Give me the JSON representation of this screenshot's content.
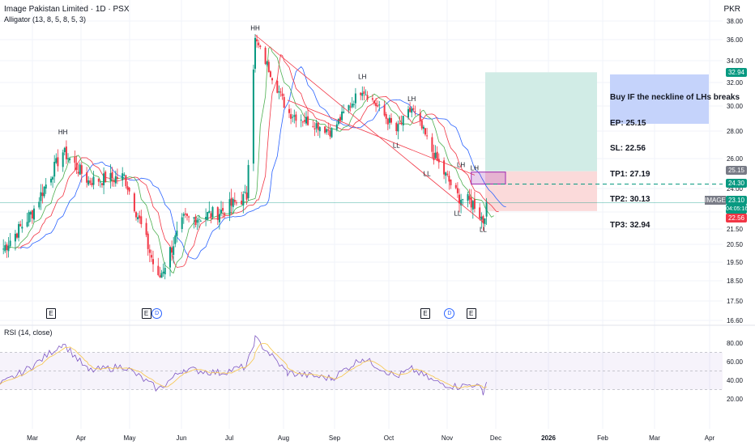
{
  "header": {
    "title": "Image Pakistan Limited · 1D · PSX",
    "indicator": "Alligator (13, 8, 5, 8, 5, 3)",
    "rsi_label": "RSI (14, close)",
    "currency": "PKR"
  },
  "trade_plan": {
    "lines": [
      "Buy IF the neckline of LHs breaks",
      "EP: 25.15",
      "SL: 22.56",
      "TP1: 27.19",
      "TP2: 30.13",
      "TP3: 32.94"
    ]
  },
  "price_labels": {
    "tp3": "32.94",
    "entry": "25.15",
    "neckline": "24.30",
    "symbol": "IMAGE",
    "last": "23.10",
    "countdown": "04:05:16",
    "stop": "22.56"
  },
  "events": [
    {
      "type": "E",
      "date": "2025-03-03"
    },
    {
      "type": "E",
      "date": "2025-04-28"
    },
    {
      "type": "D",
      "date": "2025-05-04"
    },
    {
      "type": "E",
      "date": "2025-10-09"
    },
    {
      "type": "D",
      "date": "2025-10-23"
    },
    {
      "type": "E",
      "date": "2025-11-05"
    }
  ],
  "colors": {
    "up": "#089981",
    "down": "#f23645",
    "jaw": "#2962ff",
    "teeth": "#f23645",
    "lips": "#4caf50",
    "rsi": "#7e57c2",
    "rsi_ma": "#f7c548",
    "target_zone": "#d1ece6",
    "stop_zone": "#fbdada",
    "plan_box": "#c5d3fb",
    "trendline": "#f23645",
    "neckline": "#089981"
  },
  "chart_data": {
    "type": "candlestick",
    "timeframe": "1D",
    "y_axis_ticks": [
      38.0,
      36.0,
      34.0,
      32.0,
      30.0,
      28.0,
      26.0,
      24.0,
      22.5,
      21.5,
      20.5,
      19.5,
      18.5,
      17.5,
      16.6
    ],
    "x_axis_ticks": [
      "Mar",
      "Apr",
      "May",
      "Jun",
      "Jul",
      "Aug",
      "Sep",
      "Oct",
      "Nov",
      "Dec",
      "2026",
      "Feb",
      "Mar",
      "Apr"
    ],
    "pivots": [
      {
        "label": "HH",
        "date": "2025-03-10",
        "price": 27.4
      },
      {
        "label": "HH",
        "date": "2025-07-01",
        "price": 36.5
      },
      {
        "label": "LH",
        "date": "2025-09-02",
        "price": 31.9
      },
      {
        "label": "LH",
        "date": "2025-10-01",
        "price": 30.0
      },
      {
        "label": "LL",
        "date": "2025-09-22",
        "price": 27.5
      },
      {
        "label": "LL",
        "date": "2025-10-10",
        "price": 25.5
      },
      {
        "label": "LH",
        "date": "2025-10-30",
        "price": 25.1
      },
      {
        "label": "LL",
        "date": "2025-10-28",
        "price": 22.9
      },
      {
        "label": "LH",
        "date": "2025-11-07",
        "price": 24.9
      },
      {
        "label": "LL",
        "date": "2025-11-12",
        "price": 21.9
      }
    ],
    "key_points": [
      {
        "date": "2025-02-01",
        "close": 20.0
      },
      {
        "date": "2025-02-20",
        "close": 22.5
      },
      {
        "date": "2025-03-10",
        "close": 26.5
      },
      {
        "date": "2025-03-25",
        "close": 24.5
      },
      {
        "date": "2025-04-15",
        "close": 24.8
      },
      {
        "date": "2025-05-05",
        "close": 18.5
      },
      {
        "date": "2025-05-20",
        "close": 22.0
      },
      {
        "date": "2025-06-10",
        "close": 22.5
      },
      {
        "date": "2025-06-26",
        "close": 23.5
      },
      {
        "date": "2025-07-01",
        "close": 36.0
      },
      {
        "date": "2025-07-20",
        "close": 29.5
      },
      {
        "date": "2025-08-15",
        "close": 28.0
      },
      {
        "date": "2025-09-02",
        "close": 31.5
      },
      {
        "date": "2025-09-22",
        "close": 28.0
      },
      {
        "date": "2025-10-01",
        "close": 29.8
      },
      {
        "date": "2025-10-15",
        "close": 26.0
      },
      {
        "date": "2025-10-28",
        "close": 23.5
      },
      {
        "date": "2025-11-07",
        "close": 23.0
      },
      {
        "date": "2025-11-12",
        "close": 22.0
      },
      {
        "date": "2025-11-14",
        "close": 23.1
      }
    ],
    "trade_levels": {
      "entry": 25.15,
      "stop": 22.56,
      "tp1": 27.19,
      "tp2": 30.13,
      "tp3": 32.94,
      "neckline": 24.3
    },
    "rsi_axis_ticks": [
      80.0,
      60.0,
      40.0,
      20.0
    ],
    "rsi_bands": {
      "upper": 70,
      "middle": 50,
      "lower": 30
    },
    "rsi_points": [
      {
        "date": "2025-02-01",
        "value": 35
      },
      {
        "date": "2025-02-20",
        "value": 55
      },
      {
        "date": "2025-03-10",
        "value": 80
      },
      {
        "date": "2025-03-25",
        "value": 50
      },
      {
        "date": "2025-04-15",
        "value": 55
      },
      {
        "date": "2025-05-05",
        "value": 30
      },
      {
        "date": "2025-05-20",
        "value": 52
      },
      {
        "date": "2025-06-10",
        "value": 48
      },
      {
        "date": "2025-06-26",
        "value": 55
      },
      {
        "date": "2025-07-01",
        "value": 85
      },
      {
        "date": "2025-07-20",
        "value": 48
      },
      {
        "date": "2025-08-15",
        "value": 42
      },
      {
        "date": "2025-09-02",
        "value": 64
      },
      {
        "date": "2025-09-22",
        "value": 44
      },
      {
        "date": "2025-10-01",
        "value": 52
      },
      {
        "date": "2025-10-15",
        "value": 38
      },
      {
        "date": "2025-10-28",
        "value": 33
      },
      {
        "date": "2025-11-07",
        "value": 36
      },
      {
        "date": "2025-11-12",
        "value": 28
      },
      {
        "date": "2025-11-14",
        "value": 38
      }
    ]
  }
}
